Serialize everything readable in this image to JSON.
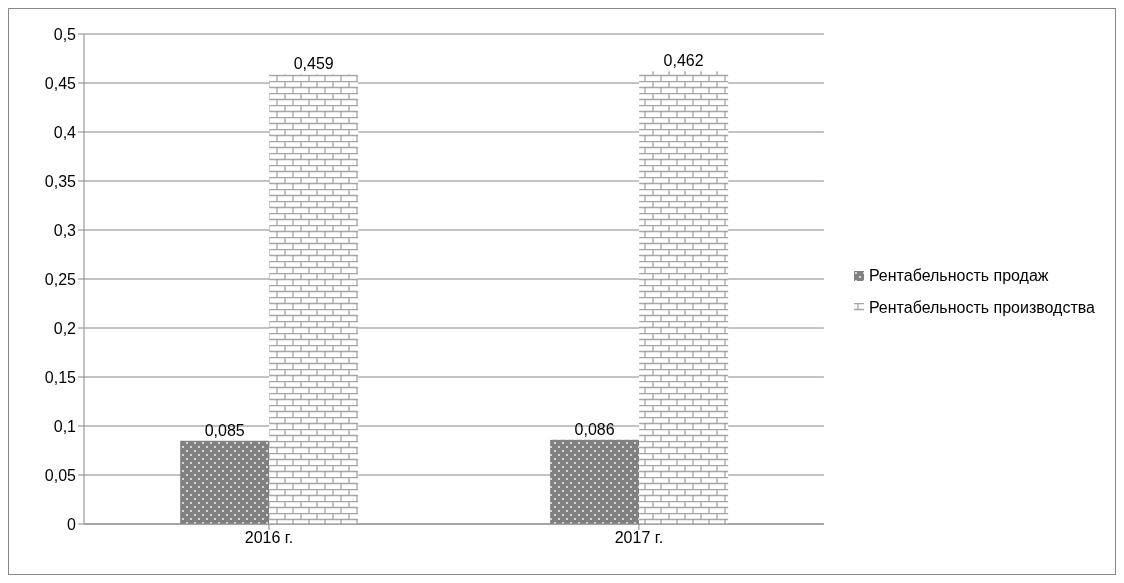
{
  "chart_data": {
    "type": "bar",
    "categories": [
      "2016 г.",
      "2017 г."
    ],
    "series": [
      {
        "name": "Рентабельность продаж",
        "color": "#808080",
        "values": [
          0.085,
          0.086
        ],
        "value_labels": [
          "0,085",
          "0,086"
        ]
      },
      {
        "name": "Рентабельность производства",
        "color": "#a6a6a6",
        "values": [
          0.459,
          0.462
        ],
        "value_labels": [
          "0,459",
          "0,462"
        ]
      }
    ],
    "ylim": [
      0,
      0.5
    ],
    "yticks": [
      0,
      {
        "value": 0.05,
        "label": "0,05"
      },
      {
        "value": 0.1,
        "label": "0,1"
      },
      {
        "value": 0.15,
        "label": "0,15"
      },
      {
        "value": 0.2,
        "label": "0,2"
      },
      {
        "value": 0.25,
        "label": "0,25"
      },
      {
        "value": 0.3,
        "label": "0,3"
      },
      {
        "value": 0.35,
        "label": "0,35"
      },
      {
        "value": 0.4,
        "label": "0,4"
      },
      {
        "value": 0.45,
        "label": "0,45"
      },
      {
        "value": 0.5,
        "label": "0,5"
      }
    ],
    "grid": "y",
    "legend": "right"
  }
}
